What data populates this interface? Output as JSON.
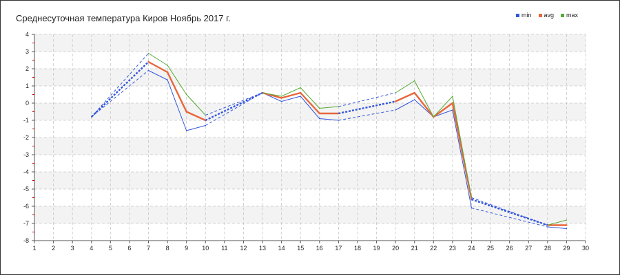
{
  "chart_data": {
    "type": "line",
    "title": "Среднесуточная температура Киров  Ноябрь 2017 г.",
    "xlabel": "",
    "ylabel": "",
    "xlim": [
      1,
      30
    ],
    "ylim": [
      -8,
      4
    ],
    "grid": true,
    "legend_position": "top-right",
    "x_ticks": [
      1,
      2,
      3,
      4,
      5,
      6,
      7,
      8,
      9,
      10,
      11,
      12,
      13,
      14,
      15,
      16,
      17,
      18,
      19,
      20,
      21,
      22,
      23,
      24,
      25,
      26,
      27,
      28,
      29,
      30
    ],
    "y_ticks": [
      4,
      3,
      2,
      1,
      0,
      -1,
      -2,
      -3,
      -4,
      -5,
      -6,
      -7,
      -8
    ],
    "series": [
      {
        "name": "min",
        "color": "#3355dd",
        "points": [
          [
            4,
            -0.8
          ],
          [
            7,
            1.9
          ],
          [
            8,
            1.35
          ],
          [
            9,
            -1.6
          ],
          [
            10,
            -1.3
          ],
          [
            13,
            0.6
          ],
          [
            14,
            0.1
          ],
          [
            15,
            0.4
          ],
          [
            16,
            -0.9
          ],
          [
            17,
            -1.0
          ],
          [
            20,
            -0.4
          ],
          [
            21,
            0.2
          ],
          [
            22,
            -0.8
          ],
          [
            23,
            -0.4
          ],
          [
            24,
            -6.1
          ],
          [
            28,
            -7.2
          ],
          [
            29,
            -7.3
          ]
        ]
      },
      {
        "name": "avg",
        "color": "#e8663a",
        "points": [
          [
            4,
            -0.8
          ],
          [
            7,
            2.4
          ],
          [
            8,
            1.8
          ],
          [
            9,
            -0.5
          ],
          [
            10,
            -1.0
          ],
          [
            13,
            0.6
          ],
          [
            14,
            0.3
          ],
          [
            15,
            0.6
          ],
          [
            16,
            -0.6
          ],
          [
            17,
            -0.6
          ],
          [
            20,
            0.1
          ],
          [
            21,
            0.6
          ],
          [
            22,
            -0.8
          ],
          [
            23,
            0.0
          ],
          [
            24,
            -5.6
          ],
          [
            28,
            -7.1
          ],
          [
            29,
            -7.1
          ]
        ]
      },
      {
        "name": "max",
        "color": "#55aa33",
        "points": [
          [
            4,
            -0.8
          ],
          [
            7,
            2.9
          ],
          [
            8,
            2.2
          ],
          [
            9,
            0.5
          ],
          [
            10,
            -0.7
          ],
          [
            13,
            0.6
          ],
          [
            14,
            0.4
          ],
          [
            15,
            0.9
          ],
          [
            16,
            -0.3
          ],
          [
            17,
            -0.2
          ],
          [
            20,
            0.6
          ],
          [
            21,
            1.3
          ],
          [
            22,
            -0.8
          ],
          [
            23,
            0.4
          ],
          [
            24,
            -5.5
          ],
          [
            28,
            -7.1
          ],
          [
            29,
            -6.8
          ]
        ]
      }
    ],
    "gap_series": {
      "color": "#3355dd",
      "segments": [
        {
          "from": 4,
          "to": 7
        },
        {
          "from": 10,
          "to": 13
        },
        {
          "from": 17,
          "to": 20
        },
        {
          "from": 24,
          "to": 28
        }
      ]
    }
  },
  "palette": {
    "axis": "#555555",
    "grid": "#c8c8c8",
    "band": "#f3f3f3",
    "tick_red": "#cc0000"
  }
}
